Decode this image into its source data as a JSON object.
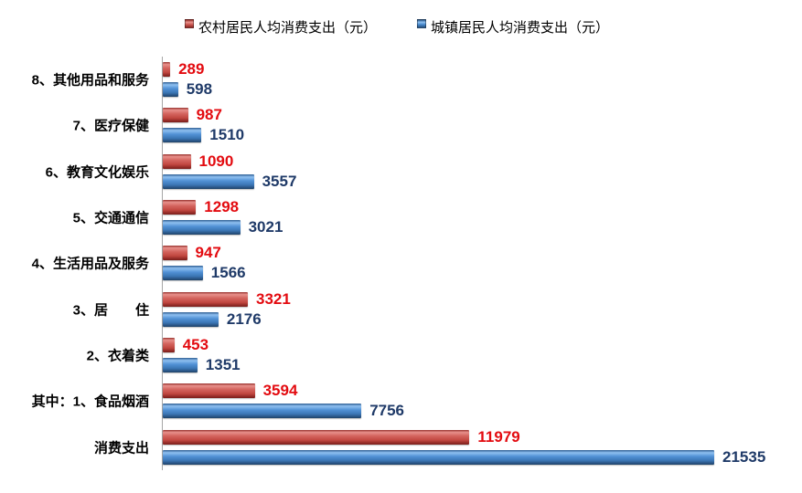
{
  "chart_data": {
    "type": "bar",
    "orientation": "horizontal",
    "title": "",
    "legend_position": "top",
    "grid": false,
    "background": "#FFFFFF",
    "axis_color": "#A6A6A6",
    "value_labels_shown": true,
    "categories": [
      "8、其他用品和服务",
      "7、医疗保健",
      "6、教育文化娱乐",
      "5、交通通信",
      "4、生活用品及服务",
      "3、居　　住",
      "2、衣着类",
      "其中：1、食品烟酒",
      "消费支出"
    ],
    "series": [
      {
        "name": "农村居民人均消费支出（元）",
        "key": "rural",
        "bar_color": "#C0443E",
        "label_color": "#E30B10",
        "values": [
          289,
          987,
          1090,
          1298,
          947,
          3321,
          453,
          3594,
          11979
        ]
      },
      {
        "name": "城镇居民人均消费支出（元）",
        "key": "urban",
        "bar_color": "#4285C5",
        "label_color": "#1F3A68",
        "values": [
          598,
          1510,
          3557,
          3021,
          1566,
          2176,
          1351,
          7756,
          21535
        ]
      }
    ],
    "xlim": [
      0,
      21535
    ]
  }
}
